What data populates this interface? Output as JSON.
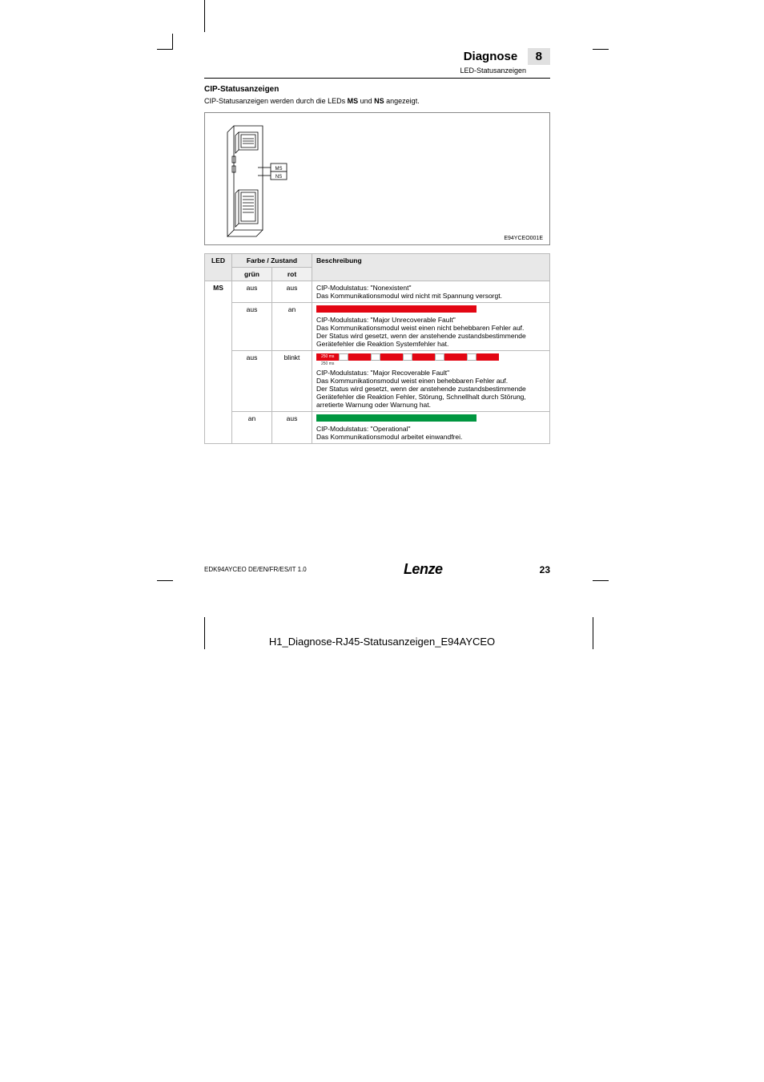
{
  "header": {
    "title": "Diagnose",
    "num": "8",
    "subtitle": "LED-Statusanzeigen"
  },
  "section": {
    "title": "CIP-Statusanzeigen",
    "body_pre": "CIP-Statusanzeigen werden durch die LEDs ",
    "body_b1": "MS",
    "body_mid": " und ",
    "body_b2": "NS",
    "body_post": " angezeigt."
  },
  "diagram": {
    "label_ms": "MS",
    "label_ns": "NS",
    "id": "E94YCEO001E"
  },
  "table": {
    "headers": {
      "led": "LED",
      "farbe": "Farbe / Zustand",
      "beschr": "Beschreibung",
      "gruen": "grün",
      "rot": "rot"
    },
    "led_name": "MS",
    "rows": [
      {
        "gruen": "aus",
        "rot": "aus",
        "bar": null,
        "desc": "CIP-Modulstatus: \"Nonexistent\"\nDas Kommunikationsmodul wird nicht mit Spannung versorgt."
      },
      {
        "gruen": "aus",
        "rot": "an",
        "bar": {
          "type": "solid",
          "color": "#e30613"
        },
        "desc": "CIP-Modulstatus: \"Major Unrecoverable Fault\"\nDas Kommunikationsmodul weist einen nicht behebbaren Fehler auf.\nDer Status wird gesetzt, wenn der anstehende zustandsbestimmende Gerätefehler die Reaktion Systemfehler hat."
      },
      {
        "gruen": "aus",
        "rot": "blinkt",
        "bar": {
          "type": "blink",
          "color": "#e30613",
          "label_on": "250 ms",
          "label_off": "250 ms"
        },
        "desc": "CIP-Modulstatus: \"Major Recoverable Fault\"\nDas Kommunikationsmodul weist einen behebbaren Fehler auf.\nDer Status wird gesetzt, wenn der anstehende zustandsbestimmende Gerätefehler die Reaktion Fehler, Störung, Schnellhalt durch Störung, arretierte Warnung oder Warnung hat."
      },
      {
        "gruen": "an",
        "rot": "aus",
        "bar": {
          "type": "solid",
          "color": "#009640"
        },
        "desc": "CIP-Modulstatus: \"Operational\"\nDas Kommunikationsmodul arbeitet einwandfrei."
      }
    ]
  },
  "footer": {
    "doc": "EDK94AYCEO  DE/EN/FR/ES/IT  1.0",
    "brand": "Lenze",
    "page": "23"
  },
  "caption": "H1_Diagnose-RJ45-Statusanzeigen_E94AYCEO",
  "colors": {
    "red": "#e30613",
    "green": "#009640",
    "header_bg": "#e8e8e8",
    "sub_bg": "#f0f0f0",
    "border": "#bbbbbb"
  }
}
